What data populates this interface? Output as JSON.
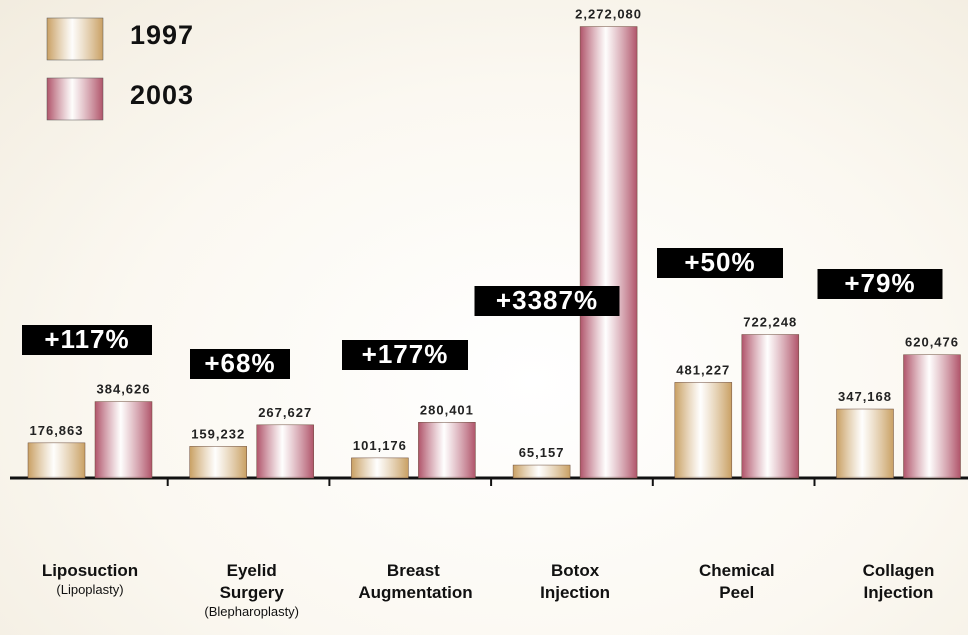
{
  "chart_data": {
    "type": "bar",
    "categories": [
      "Liposuction",
      "Eyelid Surgery",
      "Breast Augmentation",
      "Botox Injection",
      "Chemical Peel",
      "Collagen Injection"
    ],
    "category_notes": [
      "(Lipoplasty)",
      "(Blepharoplasty)",
      null,
      null,
      null,
      null
    ],
    "series": [
      {
        "name": "1997",
        "color": "#c9a063",
        "values": [
          176863,
          159232,
          101176,
          65157,
          481227,
          347168
        ],
        "value_labels": [
          "176,863",
          "159,232",
          "101,176",
          "65,157",
          "481,227",
          "347,168"
        ]
      },
      {
        "name": "2003",
        "color": "#b0546a",
        "values": [
          384626,
          267627,
          280401,
          2272080,
          722248,
          620476
        ],
        "value_labels": [
          "384,626",
          "267,627",
          "280,401",
          "2,272,080",
          "722,248",
          "620,476"
        ]
      }
    ],
    "annotations": [
      "+117%",
      "+68%",
      "+177%",
      "+3387%",
      "+50%",
      "+79%"
    ],
    "ylim": [
      0,
      2300000
    ]
  }
}
